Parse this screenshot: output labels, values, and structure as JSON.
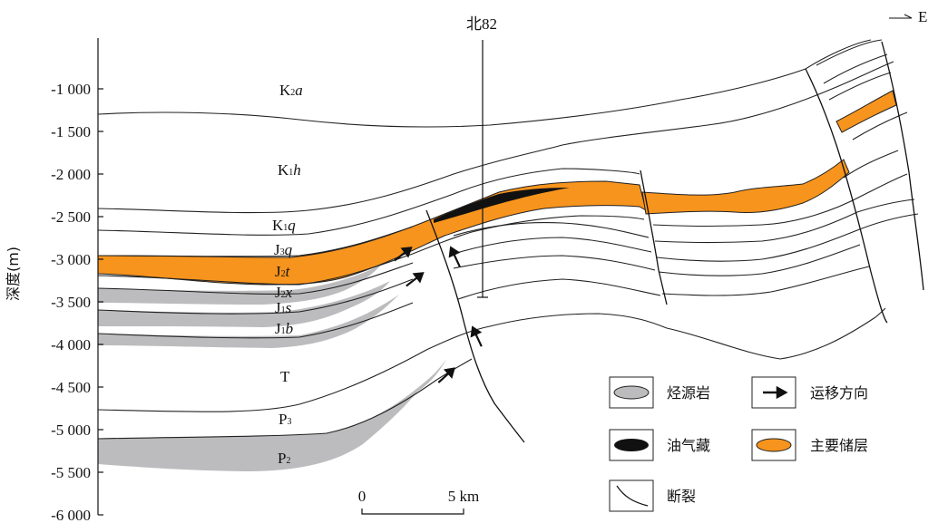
{
  "well_label": "北82",
  "direction_label": "E",
  "y_axis": {
    "title": "深度(m)",
    "ticks": [
      "-1 000",
      "-1 500",
      "-2 000",
      "-2 500",
      "-3 000",
      "-3 500",
      "-4 000",
      "-4 500",
      "-5 000",
      "-5 500",
      "-6 000"
    ]
  },
  "strata": [
    {
      "base": "K",
      "sub": "2",
      "italic": "a"
    },
    {
      "base": "K",
      "sub": "1",
      "italic": "h"
    },
    {
      "base": "K",
      "sub": "1",
      "italic": "q"
    },
    {
      "base": "J",
      "sub": "3",
      "italic": "q"
    },
    {
      "base": "J",
      "sub": "2",
      "italic": "t"
    },
    {
      "base": "J",
      "sub": "2",
      "italic": "x"
    },
    {
      "base": "J",
      "sub": "1",
      "italic": "s"
    },
    {
      "base": "J",
      "sub": "1",
      "italic": "b"
    },
    {
      "base": "T",
      "sub": "",
      "italic": ""
    },
    {
      "base": "P",
      "sub": "3",
      "italic": ""
    },
    {
      "base": "P",
      "sub": "2",
      "italic": ""
    }
  ],
  "scale_bar": {
    "start": "0",
    "end": "5 km"
  },
  "legend": {
    "source_rock": "烃源岩",
    "migration": "运移方向",
    "reservoir": "油气藏",
    "main_reservoir": "主要储层",
    "fault": "断裂"
  },
  "colors": {
    "source_rock": "#bcbcbe",
    "main_reservoir": "#f7941d",
    "oil_gas": "#111111",
    "line": "#222222"
  }
}
